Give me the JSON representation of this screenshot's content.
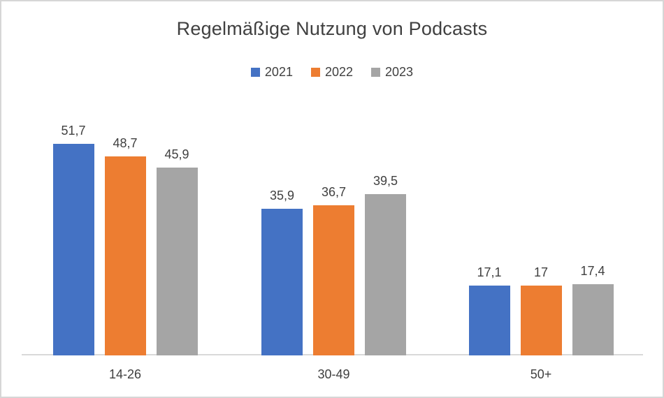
{
  "title": "Regelmäßige Nutzung von Podcasts",
  "colors": {
    "series_2021": "#4472C4",
    "series_2022": "#ED7D31",
    "series_2023": "#A5A5A5",
    "axis_line": "#D9D9D9",
    "text": "#404040",
    "frame": "#D6D6D6",
    "background": "#FFFFFF"
  },
  "legend": {
    "position": "top",
    "items": [
      "2021",
      "2022",
      "2023"
    ]
  },
  "chart_data": {
    "type": "bar",
    "title": "Regelmäßige Nutzung von Podcasts",
    "categories": [
      "14-26",
      "30-49",
      "50+"
    ],
    "series": [
      {
        "name": "2021",
        "color": "#4472C4",
        "values": [
          51.7,
          35.9,
          17.1
        ],
        "labels": [
          "51,7",
          "35,9",
          "17,1"
        ]
      },
      {
        "name": "2022",
        "color": "#ED7D31",
        "values": [
          48.7,
          36.7,
          17.0
        ],
        "labels": [
          "48,7",
          "36,7",
          "17"
        ]
      },
      {
        "name": "2023",
        "color": "#A5A5A5",
        "values": [
          45.9,
          39.5,
          17.4
        ],
        "labels": [
          "45,9",
          "39,5",
          "17,4"
        ]
      }
    ],
    "xlabel": "",
    "ylabel": "",
    "ylim": [
      0,
      60
    ],
    "grid": false,
    "legend_position": "top",
    "data_labels": true,
    "value_format": "german-decimal-comma"
  }
}
